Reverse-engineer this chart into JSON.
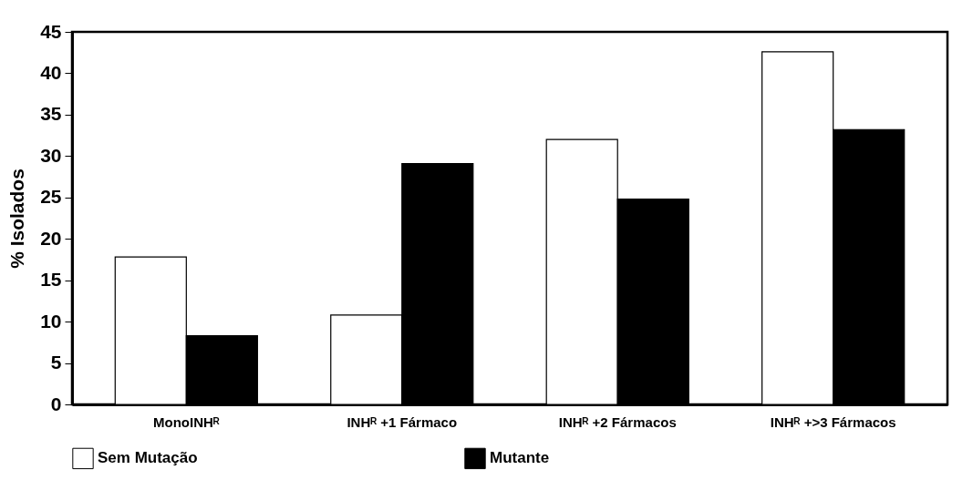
{
  "chart_data": {
    "type": "bar",
    "ylabel": "% Isolados",
    "categories": [
      "MonoINHᴿ",
      "INHᴿ +1 Fármaco",
      "INHᴿ +2 Fármacos",
      "INHᴿ +>3 Fármacos"
    ],
    "series": [
      {
        "name": "Sem Mutação",
        "color": "#ffffff",
        "values": [
          17.8,
          10.8,
          32.0,
          42.6
        ]
      },
      {
        "name": "Mutante",
        "color": "#000000",
        "values": [
          8.3,
          29.1,
          24.8,
          33.2
        ]
      }
    ],
    "ylim": [
      0,
      45
    ],
    "yticks": [
      0,
      5,
      10,
      15,
      20,
      25,
      30,
      35,
      40,
      45
    ],
    "grid": false,
    "legend": "bottom"
  }
}
